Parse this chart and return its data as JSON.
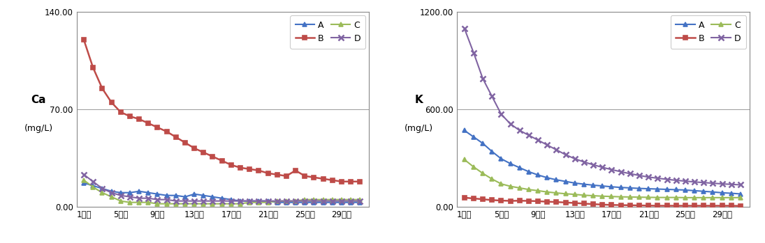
{
  "x_labels": [
    "1일차",
    "5일차",
    "9일차",
    "13일차",
    "17일차",
    "21일차",
    "25일차",
    "29일차"
  ],
  "x_tick_positions": [
    1,
    5,
    9,
    13,
    17,
    21,
    25,
    29
  ],
  "x_values": [
    1,
    2,
    3,
    4,
    5,
    6,
    7,
    8,
    9,
    10,
    11,
    12,
    13,
    14,
    15,
    16,
    17,
    18,
    19,
    20,
    21,
    22,
    23,
    24,
    25,
    26,
    27,
    28,
    29,
    30,
    31
  ],
  "Ca": {
    "A": [
      17,
      15,
      13,
      11,
      10,
      10,
      11,
      10,
      9,
      8,
      8,
      7,
      9,
      8,
      7,
      6,
      5,
      4,
      4,
      4,
      4,
      3,
      3,
      3,
      3,
      3,
      3,
      3,
      3,
      3,
      3
    ],
    "B": [
      120,
      100,
      85,
      75,
      68,
      65,
      63,
      60,
      57,
      54,
      50,
      46,
      42,
      39,
      36,
      33,
      30,
      28,
      27,
      26,
      24,
      23,
      22,
      26,
      22,
      21,
      20,
      19,
      18,
      18,
      18
    ],
    "C": [
      19,
      14,
      10,
      7,
      4,
      3,
      3,
      3,
      2,
      2,
      2,
      2,
      2,
      2,
      2,
      2,
      2,
      2,
      3,
      3,
      3,
      4,
      4,
      4,
      5,
      5,
      5,
      5,
      5,
      5,
      5
    ],
    "D": [
      23,
      18,
      13,
      10,
      8,
      7,
      6,
      6,
      5,
      5,
      4,
      4,
      4,
      4,
      4,
      4,
      4,
      4,
      4,
      4,
      4,
      4,
      4,
      4,
      4,
      4,
      4,
      4,
      4,
      4,
      4
    ]
  },
  "K": {
    "A": [
      470,
      430,
      390,
      340,
      295,
      265,
      240,
      215,
      195,
      178,
      165,
      155,
      145,
      138,
      132,
      127,
      122,
      118,
      115,
      112,
      110,
      108,
      106,
      104,
      102,
      98,
      94,
      90,
      85,
      82,
      78
    ],
    "B": [
      55,
      50,
      45,
      40,
      37,
      35,
      36,
      35,
      33,
      30,
      28,
      25,
      22,
      18,
      15,
      12,
      10,
      9,
      8,
      7,
      6,
      5,
      5,
      5,
      5,
      5,
      5,
      5,
      5,
      5,
      4
    ],
    "C": [
      290,
      245,
      205,
      170,
      140,
      125,
      115,
      105,
      98,
      90,
      84,
      79,
      75,
      70,
      67,
      64,
      62,
      60,
      59,
      58,
      57,
      56,
      56,
      56,
      55,
      55,
      55,
      55,
      55,
      55,
      55
    ],
    "D": [
      1100,
      950,
      790,
      680,
      570,
      510,
      470,
      440,
      410,
      380,
      350,
      320,
      295,
      275,
      258,
      242,
      228,
      215,
      203,
      192,
      182,
      175,
      168,
      162,
      157,
      152,
      148,
      144,
      140,
      137,
      134
    ]
  },
  "Ca_ylim": [
    0,
    140
  ],
  "Ca_yticks": [
    0.0,
    70.0,
    140.0
  ],
  "K_ylim": [
    0,
    1200
  ],
  "K_yticks": [
    0.0,
    600.0,
    1200.0
  ],
  "colors": {
    "A": "#4472C4",
    "B": "#BE4B48",
    "C": "#9BBB59",
    "D": "#8064A2"
  },
  "markers": {
    "A": "^",
    "B": "s",
    "C": "^",
    "D": "x"
  },
  "background_color": "#FFFFFF",
  "grid_color": "#999999",
  "legend_order": [
    "A",
    "B",
    "C",
    "D"
  ]
}
